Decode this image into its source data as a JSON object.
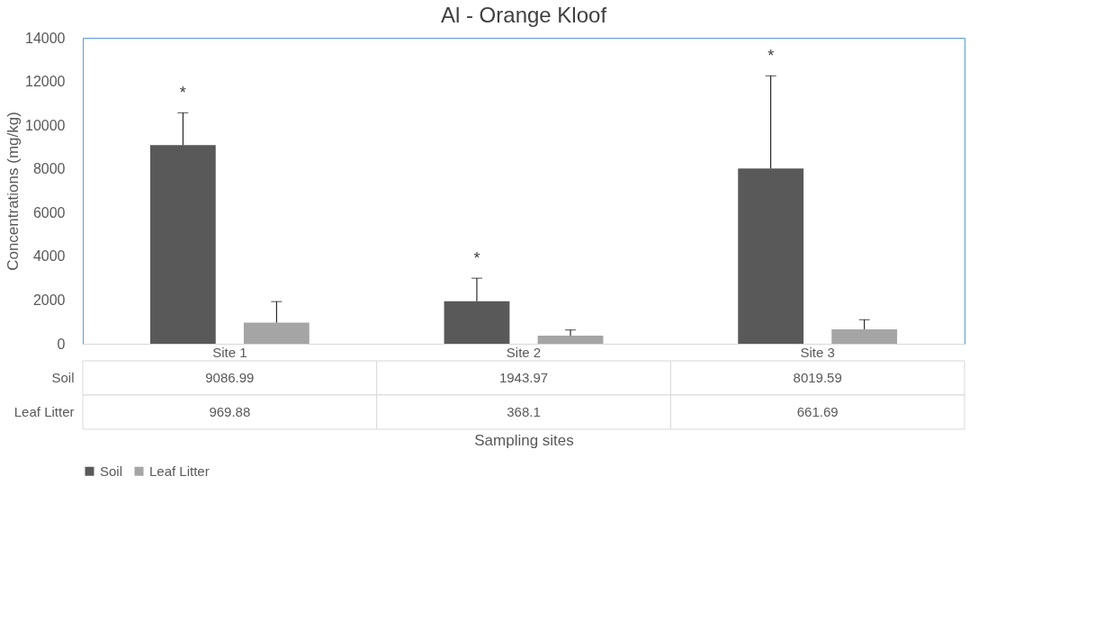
{
  "chart_data": {
    "type": "bar",
    "title": "Al - Orange Kloof",
    "xlabel": "Sampling sites",
    "ylabel": "Concentrations (mg/kg)",
    "categories": [
      "Site 1",
      "Site 2",
      "Site 3"
    ],
    "series": [
      {
        "name": "Soil",
        "color": "#595959",
        "values": [
          9086.99,
          1943.97,
          8019.59
        ],
        "errors": [
          [
            9086.99,
            10570
          ],
          [
            1943.97,
            3000
          ],
          [
            8019.59,
            12260
          ]
        ]
      },
      {
        "name": "Leaf Litter",
        "color": "#a5a5a5",
        "values": [
          969.88,
          368.1,
          661.69
        ],
        "errors": [
          [
            969.88,
            1930
          ],
          [
            368.1,
            630
          ],
          [
            661.69,
            1100
          ]
        ]
      }
    ],
    "ylim": [
      0,
      14000
    ],
    "yticks": [
      0,
      2000,
      4000,
      6000,
      8000,
      10000,
      12000,
      14000
    ],
    "annotations": [
      "*",
      "*",
      "*"
    ],
    "data_labels": true,
    "legend": "bottom",
    "grid": false
  }
}
